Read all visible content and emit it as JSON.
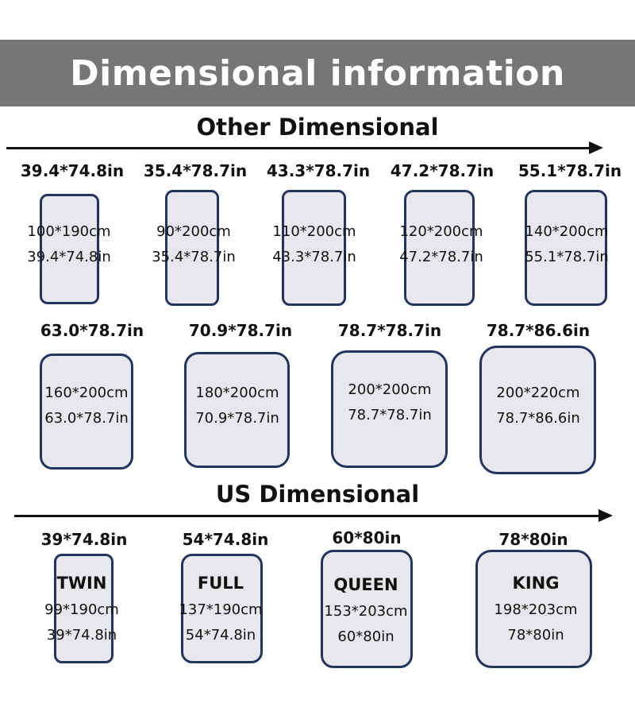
{
  "title": "Dimensional information",
  "other_section": {
    "title": "Other Dimensional",
    "row1": [
      {
        "label": "39.4*74.8in",
        "metric": "100*190cm",
        "imperial": "39.4*74.8in"
      },
      {
        "label": "35.4*78.7in",
        "metric": "90*200cm",
        "imperial": "35.4*78.7in"
      },
      {
        "label": "43.3*78.7in",
        "metric": "110*200cm",
        "imperial": "43.3*78.7in"
      },
      {
        "label": "47.2*78.7in",
        "metric": "120*200cm",
        "imperial": "47.2*78.7in"
      },
      {
        "label": "55.1*78.7in",
        "metric": "140*200cm",
        "imperial": "55.1*78.7in"
      }
    ],
    "row2": [
      {
        "label": "63.0*78.7in",
        "metric": "160*200cm",
        "imperial": "63.0*78.7in"
      },
      {
        "label": "70.9*78.7in",
        "metric": "180*200cm",
        "imperial": "70.9*78.7in"
      },
      {
        "label": "78.7*78.7in",
        "metric": "200*200cm",
        "imperial": "78.7*78.7in"
      },
      {
        "label": "78.7*86.6in",
        "metric": "200*220cm",
        "imperial": "78.7*86.6in"
      }
    ]
  },
  "us_section": {
    "title": "US Dimensional",
    "items": [
      {
        "label": "39*74.8in",
        "name": "TWIN",
        "metric": "99*190cm",
        "imperial": "39*74.8in"
      },
      {
        "label": "54*74.8in",
        "name": "FULL",
        "metric": "137*190cm",
        "imperial": "54*74.8in"
      },
      {
        "label": "60*80in",
        "name": "QUEEN",
        "metric": "153*203cm",
        "imperial": "60*80in"
      },
      {
        "label": "78*80in",
        "name": "KING",
        "metric": "198*203cm",
        "imperial": "78*80in"
      }
    ]
  },
  "colors": {
    "banner": "#777676",
    "mattress_fill": "#e8e7eb",
    "mattress_border": "#23355f"
  }
}
